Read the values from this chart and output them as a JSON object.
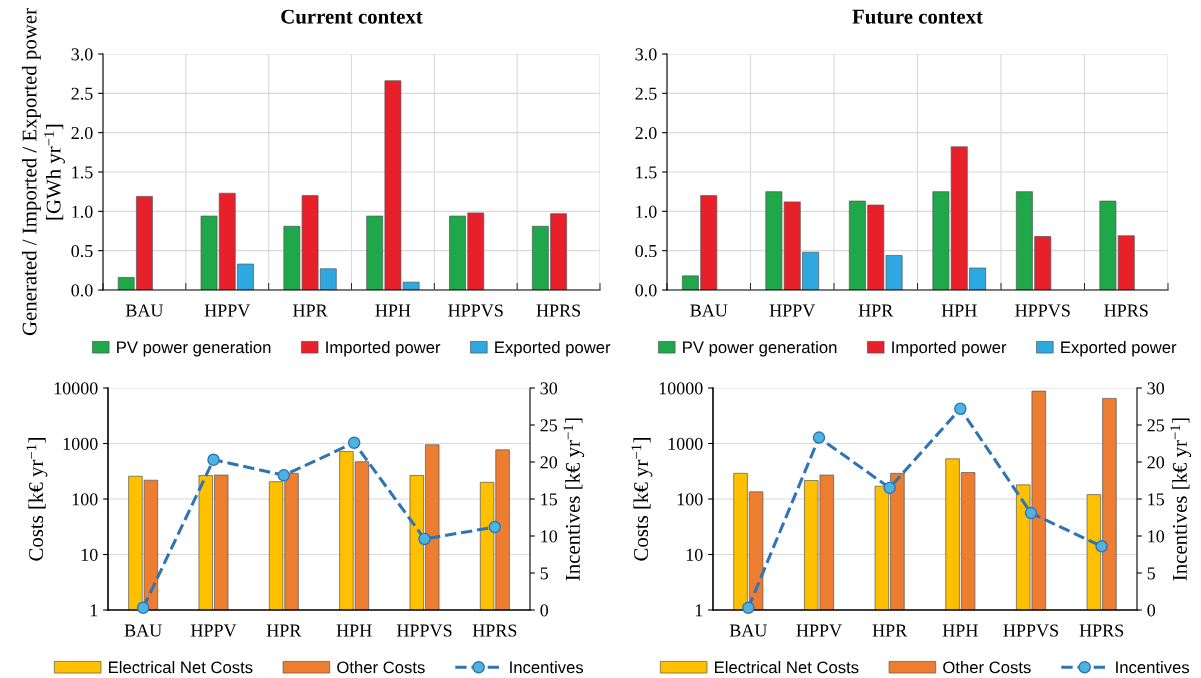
{
  "chart_data": [
    {
      "type": "bar",
      "title": "Current context",
      "ylabel": "Generated / Imported / Exported power [GWh yr$^{−1}$]",
      "categories": [
        "BAU",
        "HPPV",
        "HPR",
        "HPH",
        "HPPVS",
        "HPRS"
      ],
      "series": [
        {
          "name": "PV power generation",
          "color": "#1fa84a",
          "values": [
            0.16,
            0.94,
            0.81,
            0.94,
            0.94,
            0.81
          ]
        },
        {
          "name": "Imported power",
          "color": "#e8202a",
          "values": [
            1.19,
            1.23,
            1.2,
            2.66,
            0.98,
            0.97
          ]
        },
        {
          "name": "Exported power",
          "color": "#2ea8e0",
          "values": [
            null,
            0.33,
            0.27,
            0.1,
            null,
            null
          ]
        }
      ],
      "ylim": [
        0,
        3
      ],
      "yticks": [
        {
          "value": 0,
          "label": "0.0"
        },
        {
          "value": 0.5,
          "label": "0.5"
        },
        {
          "value": 1,
          "label": "1.0"
        },
        {
          "value": 1.5,
          "label": "1.5"
        },
        {
          "value": 2,
          "label": "2.0"
        },
        {
          "value": 2.5,
          "label": "2.5"
        },
        {
          "value": 3,
          "label": "3.0"
        }
      ],
      "grid": true,
      "legend": "bottom"
    },
    {
      "type": "bar",
      "title": "Future context",
      "categories": [
        "BAU",
        "HPPV",
        "HPR",
        "HPH",
        "HPPVS",
        "HPRS"
      ],
      "series": [
        {
          "name": "PV power generation",
          "color": "#1fa84a",
          "values": [
            0.18,
            1.25,
            1.13,
            1.25,
            1.25,
            1.13
          ]
        },
        {
          "name": "Imported power",
          "color": "#e8202a",
          "values": [
            1.2,
            1.12,
            1.08,
            1.82,
            0.68,
            0.69
          ]
        },
        {
          "name": "Exported power",
          "color": "#2ea8e0",
          "values": [
            null,
            0.48,
            0.44,
            0.28,
            null,
            null
          ]
        }
      ],
      "ylim": [
        0,
        3
      ],
      "yticks": [
        {
          "value": 0,
          "label": "0.0"
        },
        {
          "value": 0.5,
          "label": "0.5"
        },
        {
          "value": 1,
          "label": "1.0"
        },
        {
          "value": 1.5,
          "label": "1.5"
        },
        {
          "value": 2,
          "label": "2.0"
        },
        {
          "value": 2.5,
          "label": "2.5"
        },
        {
          "value": 3,
          "label": "3.0"
        }
      ],
      "grid": true,
      "legend": "bottom"
    },
    {
      "type": "bar",
      "ylabel": "Costs [k€ yr$^{−1}$]",
      "y2label": "Incentives [k€ yr$^{−1}$]",
      "categories": [
        "BAU",
        "HPPV",
        "HPR",
        "HPH",
        "HPPVS",
        "HPRS"
      ],
      "series": [
        {
          "name": "Electrical Net Costs",
          "color": "#ffc000",
          "values": [
            257,
            265,
            205,
            718,
            265,
            200
          ]
        },
        {
          "name": "Other Costs",
          "color": "#ed7d31",
          "values": [
            218,
            270,
            290,
            470,
            950,
            770
          ]
        },
        {
          "name": "Incentives",
          "type": "line",
          "axis": "y2",
          "color": "#2e75b6",
          "marker": "circle",
          "line_style": "dashed",
          "values": [
            0.3,
            20.3,
            18.2,
            22.6,
            9.6,
            11.2
          ]
        }
      ],
      "log": true,
      "ylim": [
        1,
        10000
      ],
      "yticks": [
        1,
        10,
        100,
        1000,
        10000
      ],
      "y2lim": [
        0,
        30
      ],
      "y2ticks": [
        0,
        5,
        10,
        15,
        20,
        25,
        30
      ],
      "grid": true,
      "legend": "bottom"
    },
    {
      "type": "bar",
      "ylabel": "Costs [k€ yr$^{−1}$]",
      "y2label": "Incentives [k€ yr$^{−1}$]",
      "categories": [
        "BAU",
        "HPPV",
        "HPR",
        "HPH",
        "HPPVS",
        "HPRS"
      ],
      "series": [
        {
          "name": "Electrical Net Costs",
          "color": "#ffc000",
          "values": [
            290,
            215,
            170,
            530,
            180,
            120
          ]
        },
        {
          "name": "Other Costs",
          "color": "#ed7d31",
          "values": [
            135,
            270,
            290,
            300,
            8800,
            6500
          ]
        },
        {
          "name": "Incentives",
          "type": "line",
          "axis": "y2",
          "color": "#2e75b6",
          "marker": "circle",
          "line_style": "dashed",
          "values": [
            0.3,
            23.3,
            16.5,
            27.2,
            13.1,
            8.6
          ]
        }
      ],
      "log": true,
      "ylim": [
        1,
        10000
      ],
      "yticks": [
        1,
        10,
        100,
        1000,
        10000
      ],
      "y2lim": [
        0,
        30
      ],
      "y2ticks": [
        0,
        5,
        10,
        15,
        20,
        25,
        30
      ],
      "grid": true,
      "legend": "bottom"
    }
  ]
}
